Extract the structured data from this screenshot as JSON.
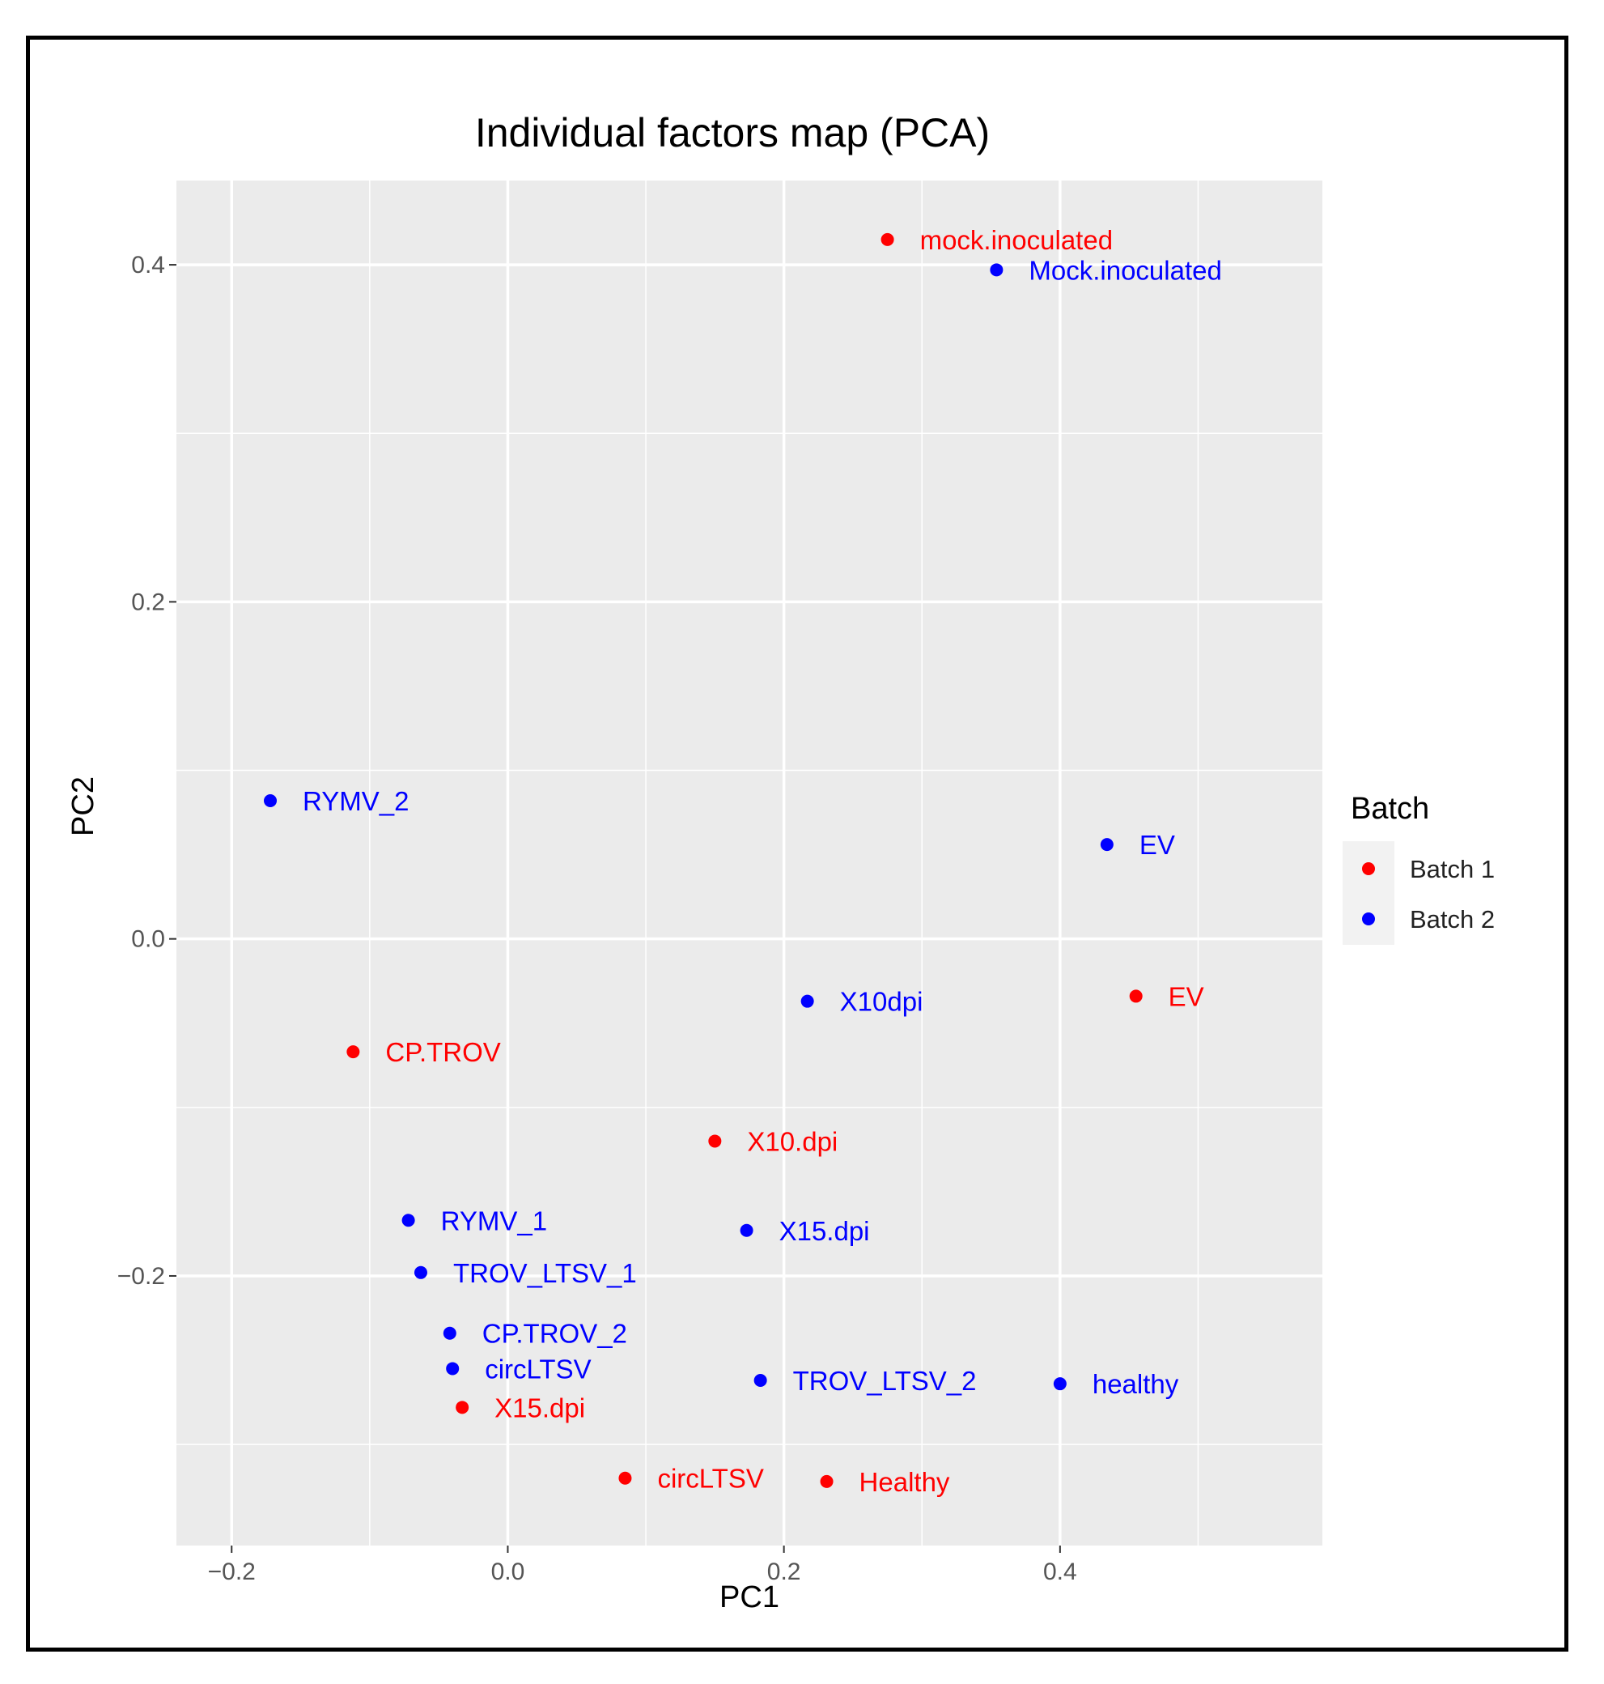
{
  "chart_data": {
    "type": "scatter",
    "title": "Individual factors map (PCA)",
    "xlabel": "PC1",
    "ylabel": "PC2",
    "xlim": [
      -0.24,
      0.59
    ],
    "ylim": [
      -0.36,
      0.45
    ],
    "x_ticks": [
      {
        "value": -0.2,
        "label": "−0.2"
      },
      {
        "value": 0.0,
        "label": "0.0"
      },
      {
        "value": 0.2,
        "label": "0.2"
      },
      {
        "value": 0.4,
        "label": "0.4"
      }
    ],
    "y_ticks": [
      {
        "value": 0.4,
        "label": "0.4"
      },
      {
        "value": 0.2,
        "label": "0.2"
      },
      {
        "value": 0.0,
        "label": "0.0"
      },
      {
        "value": -0.2,
        "label": "−0.2"
      }
    ],
    "grid": true,
    "legend": {
      "title": "Batch",
      "position": "right"
    },
    "series": [
      {
        "name": "Batch 1",
        "color": "#ff0000",
        "points": [
          {
            "x": 0.275,
            "y": 0.415,
            "label": "mock.inoculated"
          },
          {
            "x": -0.112,
            "y": -0.067,
            "label": "CP.TROV"
          },
          {
            "x": 0.15,
            "y": -0.12,
            "label": "X10.dpi"
          },
          {
            "x": 0.455,
            "y": -0.034,
            "label": "EV"
          },
          {
            "x": -0.033,
            "y": -0.278,
            "label": "X15.dpi"
          },
          {
            "x": 0.085,
            "y": -0.32,
            "label": "circLTSV"
          },
          {
            "x": 0.231,
            "y": -0.322,
            "label": "Healthy"
          }
        ]
      },
      {
        "name": "Batch 2",
        "color": "#0000ff",
        "points": [
          {
            "x": 0.354,
            "y": 0.397,
            "label": "Mock.inoculated"
          },
          {
            "x": -0.172,
            "y": 0.082,
            "label": "RYMV_2"
          },
          {
            "x": 0.434,
            "y": 0.056,
            "label": "EV"
          },
          {
            "x": 0.217,
            "y": -0.037,
            "label": "X10dpi"
          },
          {
            "x": -0.072,
            "y": -0.167,
            "label": "RYMV_1"
          },
          {
            "x": 0.173,
            "y": -0.173,
            "label": "X15.dpi"
          },
          {
            "x": -0.063,
            "y": -0.198,
            "label": "TROV_LTSV_1"
          },
          {
            "x": -0.042,
            "y": -0.234,
            "label": "CP.TROV_2"
          },
          {
            "x": -0.04,
            "y": -0.255,
            "label": "circLTSV"
          },
          {
            "x": 0.183,
            "y": -0.262,
            "label": "TROV_LTSV_2"
          },
          {
            "x": 0.4,
            "y": -0.264,
            "label": "healthy"
          }
        ]
      }
    ]
  }
}
